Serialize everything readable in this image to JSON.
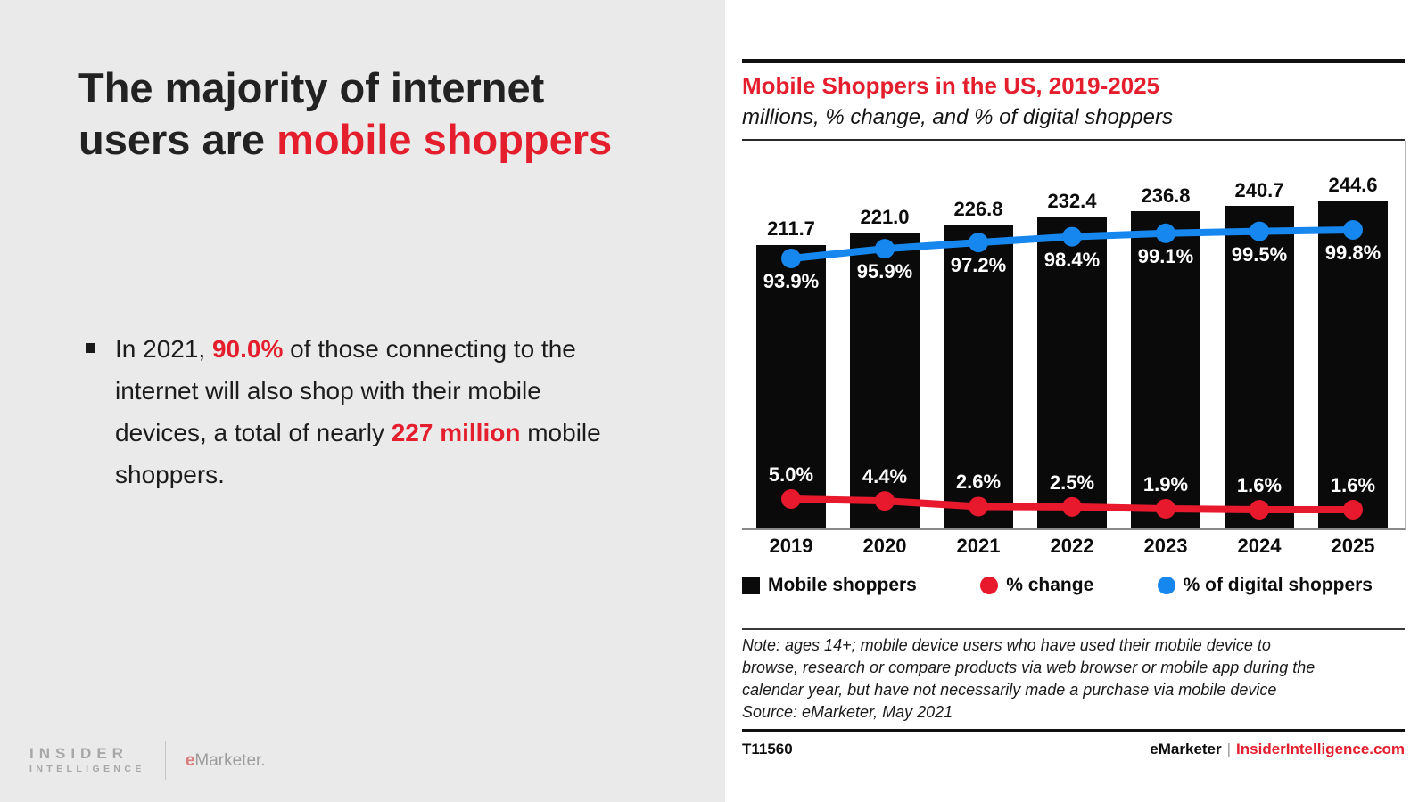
{
  "left_panel": {
    "headline": {
      "part1": "The majority of internet users are ",
      "highlight": "mobile shoppers"
    },
    "bullet": {
      "part1": "In 2021, ",
      "highlight1": "90.0%",
      "part2": " of those connecting to the internet will also shop with their mobile devices, a total of nearly ",
      "highlight2": "227 million",
      "part3": " mobile shoppers."
    },
    "logos": {
      "insider_line1": "INSIDER",
      "insider_line2": "INTELLIGENCE",
      "emarketer_e": "e",
      "emarketer_rest": "Marketer."
    }
  },
  "chart_panel": {
    "title": "Mobile Shoppers in the US, 2019-2025",
    "subtitle": "millions, % change, and % of digital shoppers",
    "legend": [
      {
        "label": "Mobile shoppers",
        "marker": "square",
        "color": "#0a0a0a"
      },
      {
        "label": "% change",
        "marker": "circle",
        "color": "#e8192d"
      },
      {
        "label": "% of digital shoppers",
        "marker": "circle",
        "color": "#1787f0"
      }
    ],
    "note": "Note: ages 14+; mobile device users who have used their mobile device to\nbrowse, research or compare products via web browser or mobile app during the\ncalendar year, but have not necessarily made a purchase via mobile device",
    "source": "Source: eMarketer, May 2021",
    "footer": {
      "id": "T11560",
      "brand": "eMarketer",
      "separator": "|",
      "site": "InsiderIntelligence.com"
    }
  },
  "chart_data": {
    "type": "bar",
    "title": "Mobile Shoppers in the US, 2019-2025",
    "subtitle": "millions, % change, and % of digital shoppers",
    "categories": [
      "2019",
      "2020",
      "2021",
      "2022",
      "2023",
      "2024",
      "2025"
    ],
    "series": [
      {
        "name": "Mobile shoppers",
        "unit": "millions",
        "style": "bar",
        "values": [
          211.7,
          221.0,
          226.8,
          232.4,
          236.8,
          240.7,
          244.6
        ],
        "labels": [
          "211.7",
          "221.0",
          "226.8",
          "232.4",
          "236.8",
          "240.7",
          "244.6"
        ]
      },
      {
        "name": "% change",
        "unit": "percent",
        "style": "line",
        "values": [
          5.0,
          4.4,
          2.6,
          2.5,
          1.9,
          1.6,
          1.6
        ],
        "labels": [
          "5.0%",
          "4.4%",
          "2.6%",
          "2.5%",
          "1.9%",
          "1.6%",
          "1.6%"
        ]
      },
      {
        "name": "% of digital shoppers",
        "unit": "percent",
        "style": "line",
        "values": [
          93.9,
          95.9,
          97.2,
          98.4,
          99.1,
          99.5,
          99.8
        ],
        "labels": [
          "93.9%",
          "95.9%",
          "97.2%",
          "98.4%",
          "99.1%",
          "99.5%",
          "99.8%"
        ]
      }
    ],
    "ylim": [
      0,
      260
    ],
    "grid": false,
    "legend_position": "bottom"
  },
  "colors": {
    "red": "#e8192d",
    "blue": "#1787f0",
    "bar_black": "#0a0a0a",
    "left_background": "#eaeaea",
    "accent_text_red": "#e41e2d"
  }
}
